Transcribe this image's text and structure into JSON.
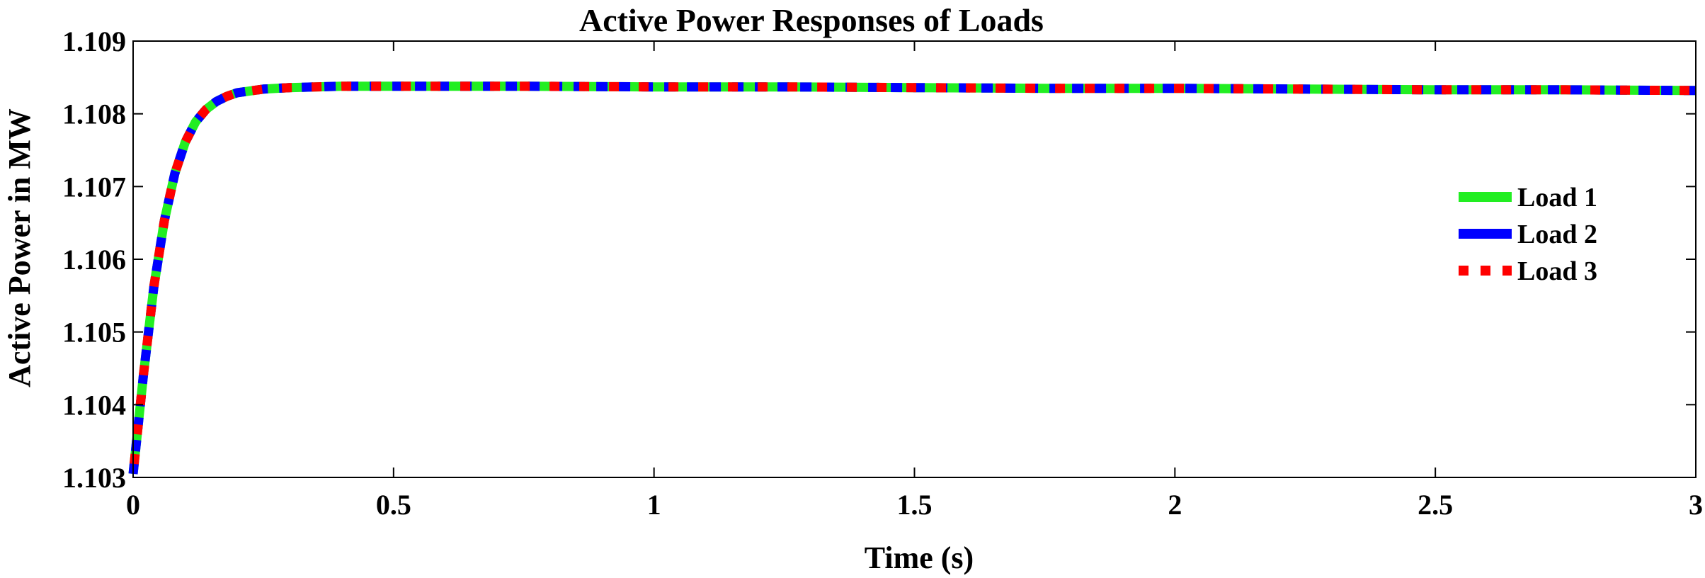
{
  "chart_data": {
    "type": "line",
    "title": "Active Power Responses of Loads",
    "xlabel": "Time (s)",
    "ylabel": "Active Power in MW",
    "xlim": [
      0,
      3
    ],
    "ylim": [
      1.103,
      1.109
    ],
    "xticks": [
      0,
      0.5,
      1,
      1.5,
      2,
      2.5,
      3
    ],
    "xtick_labels": [
      "0",
      "0.5",
      "1",
      "1.5",
      "2",
      "2.5",
      "3"
    ],
    "yticks": [
      1.103,
      1.104,
      1.105,
      1.106,
      1.107,
      1.108,
      1.109
    ],
    "ytick_labels": [
      "1.103",
      "1.104",
      "1.105",
      "1.106",
      "1.107",
      "1.108",
      "1.109"
    ],
    "grid": false,
    "legend_position": "right",
    "x": [
      0,
      0.02,
      0.04,
      0.06,
      0.08,
      0.1,
      0.12,
      0.14,
      0.16,
      0.18,
      0.2,
      0.25,
      0.3,
      0.4,
      0.5,
      0.75,
      1,
      1.25,
      1.5,
      1.75,
      2,
      2.25,
      2.5,
      2.75,
      3
    ],
    "series": [
      {
        "name": "Load 1",
        "color": "#22ee22",
        "style": "solid",
        "values": [
          1.10305,
          1.10442,
          1.10563,
          1.10653,
          1.10718,
          1.10761,
          1.10789,
          1.10806,
          1.10817,
          1.10824,
          1.10829,
          1.10834,
          1.10836,
          1.10838,
          1.10838,
          1.10838,
          1.10837,
          1.10837,
          1.10836,
          1.10835,
          1.10835,
          1.10834,
          1.10833,
          1.10833,
          1.10832
        ]
      },
      {
        "name": "Load 2",
        "color": "#0000ff",
        "style": "dashed",
        "values": [
          1.10305,
          1.10442,
          1.10563,
          1.10653,
          1.10718,
          1.10761,
          1.10789,
          1.10806,
          1.10817,
          1.10824,
          1.10829,
          1.10834,
          1.10836,
          1.10838,
          1.10838,
          1.10838,
          1.10837,
          1.10837,
          1.10836,
          1.10835,
          1.10835,
          1.10834,
          1.10833,
          1.10833,
          1.10832
        ]
      },
      {
        "name": "Load 3",
        "color": "#ff0000",
        "style": "dotted",
        "values": [
          1.10305,
          1.10442,
          1.10563,
          1.10653,
          1.10718,
          1.10761,
          1.10789,
          1.10806,
          1.10817,
          1.10824,
          1.10829,
          1.10834,
          1.10836,
          1.10838,
          1.10838,
          1.10838,
          1.10837,
          1.10837,
          1.10836,
          1.10835,
          1.10835,
          1.10834,
          1.10833,
          1.10833,
          1.10832
        ]
      }
    ]
  }
}
